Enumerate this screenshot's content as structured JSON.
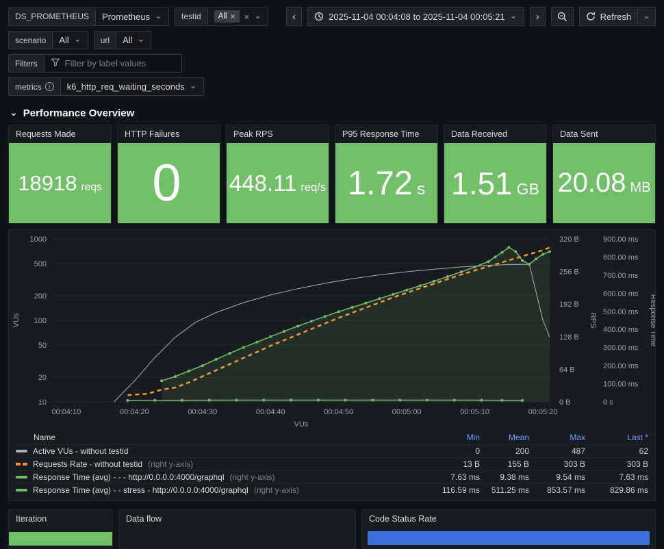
{
  "toolbar": {
    "ds": {
      "label": "DS_PROMETHEUS",
      "value": "Prometheus"
    },
    "testid": {
      "label": "testid",
      "chip": "All"
    },
    "scenario": {
      "label": "scenario",
      "value": "All"
    },
    "url": {
      "label": "url",
      "value": "All"
    },
    "filters": {
      "label": "Filters",
      "placeholder": "Filter by label values"
    },
    "metrics": {
      "label": "metrics",
      "value": "k6_http_req_waiting_seconds"
    },
    "time_range": "2025-11-04 00:04:08 to 2025-11-04 00:05:21",
    "refresh": "Refresh"
  },
  "icons": {
    "chevron_down": "⌄",
    "close": "×",
    "prev": "‹",
    "next": "›"
  },
  "section_title": "Performance Overview",
  "stats": [
    {
      "title": "Requests Made",
      "value": "18918",
      "unit": "reqs"
    },
    {
      "title": "HTTP Failures",
      "value": "0",
      "unit": ""
    },
    {
      "title": "Peak RPS",
      "value": "448.11",
      "unit": "req/s"
    },
    {
      "title": "P95 Response Time",
      "value": "1.72",
      "unit": "s"
    },
    {
      "title": "Data Received",
      "value": "1.51",
      "unit": "GB"
    },
    {
      "title": "Data Sent",
      "value": "20.08",
      "unit": "MB"
    }
  ],
  "chart_data": {
    "type": "line",
    "title": "",
    "xlabel": "VUs",
    "x_range": [
      248,
      321
    ],
    "x_ticks": [
      {
        "t": 250,
        "label": "00:04:10"
      },
      {
        "t": 260,
        "label": "00:04:20"
      },
      {
        "t": 270,
        "label": "00:04:30"
      },
      {
        "t": 280,
        "label": "00:04:40"
      },
      {
        "t": 290,
        "label": "00:04:50"
      },
      {
        "t": 300,
        "label": "00:05:00"
      },
      {
        "t": 310,
        "label": "00:05:10"
      },
      {
        "t": 320,
        "label": "00:05:20"
      }
    ],
    "axes": {
      "vus": {
        "label": "VUs",
        "side": "left",
        "scale": "log",
        "min": 10,
        "max": 1000,
        "ticks": [
          {
            "v": 10,
            "label": "10"
          },
          {
            "v": 20,
            "label": "20"
          },
          {
            "v": 50,
            "label": "50"
          },
          {
            "v": 100,
            "label": "100"
          },
          {
            "v": 200,
            "label": "200"
          },
          {
            "v": 500,
            "label": "500"
          },
          {
            "v": 1000,
            "label": "1000"
          }
        ]
      },
      "rps": {
        "label": "RPS",
        "side": "right",
        "scale": "linear",
        "min": 0,
        "max": 320,
        "ticks": [
          {
            "v": 0,
            "label": "0 B"
          },
          {
            "v": 64,
            "label": "64 B"
          },
          {
            "v": 128,
            "label": "128 B"
          },
          {
            "v": 192,
            "label": "192 B"
          },
          {
            "v": 256,
            "label": "256 B"
          },
          {
            "v": 320,
            "label": "320 B"
          }
        ]
      },
      "rt": {
        "label": "Response Time",
        "side": "right",
        "scale": "linear",
        "min": 0,
        "max": 900,
        "ticks": [
          {
            "v": 0,
            "label": "0 s"
          },
          {
            "v": 100,
            "label": "100.00 ms"
          },
          {
            "v": 200,
            "label": "200.00 ms"
          },
          {
            "v": 300,
            "label": "300.00 ms"
          },
          {
            "v": 400,
            "label": "400.00 ms"
          },
          {
            "v": 500,
            "label": "500.00 ms"
          },
          {
            "v": 600,
            "label": "600.00 ms"
          },
          {
            "v": 700,
            "label": "700.00 ms"
          },
          {
            "v": 800,
            "label": "800.00 ms"
          },
          {
            "v": 900,
            "label": "900.00 ms"
          }
        ]
      }
    },
    "series": [
      {
        "name": "Active VUs - without testid",
        "axis": "vus",
        "color": "#AEB1B7",
        "width": 1,
        "points": [
          [
            257,
            10
          ],
          [
            260,
            18
          ],
          [
            263,
            35
          ],
          [
            266,
            62
          ],
          [
            269,
            95
          ],
          [
            272,
            125
          ],
          [
            276,
            165
          ],
          [
            280,
            205
          ],
          [
            284,
            245
          ],
          [
            288,
            285
          ],
          [
            292,
            325
          ],
          [
            296,
            362
          ],
          [
            300,
            395
          ],
          [
            304,
            425
          ],
          [
            308,
            452
          ],
          [
            312,
            472
          ],
          [
            315,
            484
          ],
          [
            318,
            487
          ],
          [
            320,
            100
          ],
          [
            321,
            62
          ]
        ]
      },
      {
        "name": "Requests Rate - without testid",
        "axis": "rps",
        "color": "#FF9830",
        "width": 2.5,
        "dash": "6 5",
        "points": [
          [
            259,
            13
          ],
          [
            262,
            16
          ],
          [
            264,
            24
          ],
          [
            266,
            28
          ],
          [
            268,
            38
          ],
          [
            270,
            50
          ],
          [
            272,
            62
          ],
          [
            274,
            74
          ],
          [
            276,
            86
          ],
          [
            278,
            98
          ],
          [
            280,
            110
          ],
          [
            282,
            121
          ],
          [
            284,
            132
          ],
          [
            286,
            143
          ],
          [
            288,
            154
          ],
          [
            290,
            165
          ],
          [
            292,
            175
          ],
          [
            294,
            185
          ],
          [
            296,
            195
          ],
          [
            298,
            205
          ],
          [
            300,
            214
          ],
          [
            302,
            223
          ],
          [
            304,
            232
          ],
          [
            306,
            241
          ],
          [
            308,
            250
          ],
          [
            310,
            258
          ],
          [
            312,
            266
          ],
          [
            314,
            274
          ],
          [
            316,
            282
          ],
          [
            318,
            290
          ],
          [
            320,
            298
          ],
          [
            321,
            303
          ]
        ]
      },
      {
        "name": "Response Time (avg) - - - http://0.0.0.0:4000/graphql",
        "axis": "rt",
        "color": "#73BF69",
        "width": 1.5,
        "markers": true,
        "points": [
          [
            259,
            7.6
          ],
          [
            263,
            8.2
          ],
          [
            267,
            8.8
          ],
          [
            271,
            9.2
          ],
          [
            275,
            9.4
          ],
          [
            279,
            9.5
          ],
          [
            283,
            9.4
          ],
          [
            287,
            9.3
          ],
          [
            291,
            9.4
          ],
          [
            295,
            9.3
          ],
          [
            299,
            9.4
          ],
          [
            303,
            9.3
          ],
          [
            307,
            9.4
          ],
          [
            311,
            9.2
          ],
          [
            314,
            8.5
          ],
          [
            317,
            7.63
          ]
        ]
      },
      {
        "name": "Response Time (avg) - - stress - http://0.0.0.0:4000/graphql",
        "axis": "rt",
        "color": "#73BF69",
        "width": 1.5,
        "markers": true,
        "fill": true,
        "points": [
          [
            264,
            116
          ],
          [
            266,
            140
          ],
          [
            268,
            170
          ],
          [
            270,
            200
          ],
          [
            272,
            235
          ],
          [
            274,
            268
          ],
          [
            276,
            300
          ],
          [
            278,
            330
          ],
          [
            280,
            360
          ],
          [
            282,
            390
          ],
          [
            284,
            418
          ],
          [
            286,
            445
          ],
          [
            288,
            472
          ],
          [
            290,
            498
          ],
          [
            292,
            522
          ],
          [
            294,
            546
          ],
          [
            296,
            570
          ],
          [
            298,
            594
          ],
          [
            300,
            618
          ],
          [
            302,
            642
          ],
          [
            304,
            666
          ],
          [
            306,
            692
          ],
          [
            308,
            718
          ],
          [
            310,
            745
          ],
          [
            312,
            775
          ],
          [
            313,
            800
          ],
          [
            314,
            825
          ],
          [
            315,
            853
          ],
          [
            316,
            830
          ],
          [
            317,
            780
          ],
          [
            318,
            760
          ],
          [
            319,
            790
          ],
          [
            320,
            815
          ],
          [
            321,
            830
          ]
        ]
      }
    ]
  },
  "legend": {
    "headers": [
      "Name",
      "Min",
      "Mean",
      "Max",
      "Last *"
    ],
    "rows": [
      {
        "name": "Active VUs - without testid",
        "suffix": "",
        "min": "0",
        "mean": "200",
        "max": "487",
        "last": "62"
      },
      {
        "name": "Requests Rate - without testid",
        "suffix": "(right y-axis)",
        "min": "13 B",
        "mean": "155 B",
        "max": "303 B",
        "last": "303 B"
      },
      {
        "name": "Response Time (avg) - - - http://0.0.0.0:4000/graphql",
        "suffix": "(right y-axis)",
        "min": "7.63 ms",
        "mean": "9.38 ms",
        "max": "9.54 ms",
        "last": "7.63 ms"
      },
      {
        "name": "Response Time (avg) - - stress - http://0.0.0.0:4000/graphql",
        "suffix": "(right y-axis)",
        "min": "116.59 ms",
        "mean": "511.25 ms",
        "max": "853.57 ms",
        "last": "829.86 ms"
      }
    ]
  },
  "bottom_panels": {
    "iteration": "Iteration",
    "data_flow": "Data flow",
    "code_status": "Code Status Rate"
  },
  "colors": {
    "background": "#111217",
    "panel": "#181b1f",
    "stat_green": "#73BF69",
    "bar_blue": "#3D71D9",
    "orange": "#FF9830",
    "green": "#73BF69",
    "gray_line": "#AEB1B7",
    "link_blue": "#6E9FFF"
  }
}
